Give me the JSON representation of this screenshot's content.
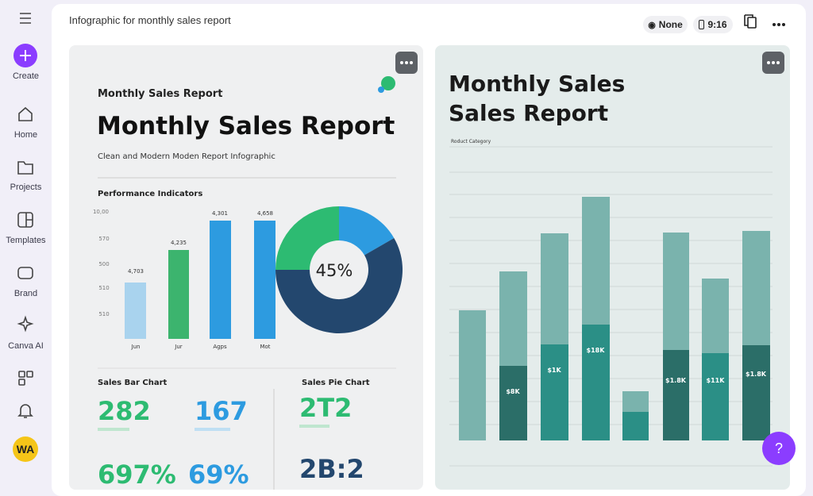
{
  "sidebar": {
    "items": [
      "Create",
      "Home",
      "Projects",
      "Templates",
      "Brand",
      "Canva AI"
    ],
    "avatar": "WA"
  },
  "header": {
    "title": "Infographic for monthly sales report",
    "color_profile": "None",
    "ratio": "9:16"
  },
  "designs": [
    {
      "kicker": "Monthly Sales Report",
      "title": "Monthly Sales Report",
      "subtitle": "Clean and Modern Moden Report Infographic",
      "section": "Performance Indicators",
      "axis_labels": [
        "10,00",
        "570",
        "500",
        "510",
        "510"
      ],
      "bar_labels": [
        "4,703",
        "4,235",
        "4,301",
        "4,658"
      ],
      "months": [
        "Jun",
        "Jur",
        "Agps",
        "Mot"
      ],
      "donut_label": "45%",
      "left_heading": "Sales Bar Chart",
      "right_heading": "Sales Pie Chart",
      "stats": [
        "282",
        "167",
        "2T2",
        "697%",
        "69%",
        "2B:2"
      ]
    },
    {
      "title_lines": [
        "Monthly Sales",
        "Sales Report"
      ],
      "category": "Roduct Category",
      "bar_labels": [
        "$8K",
        "$1K",
        "$18K",
        "$1.8K",
        "$11K",
        "$1.8K"
      ]
    }
  ],
  "help": "?"
}
